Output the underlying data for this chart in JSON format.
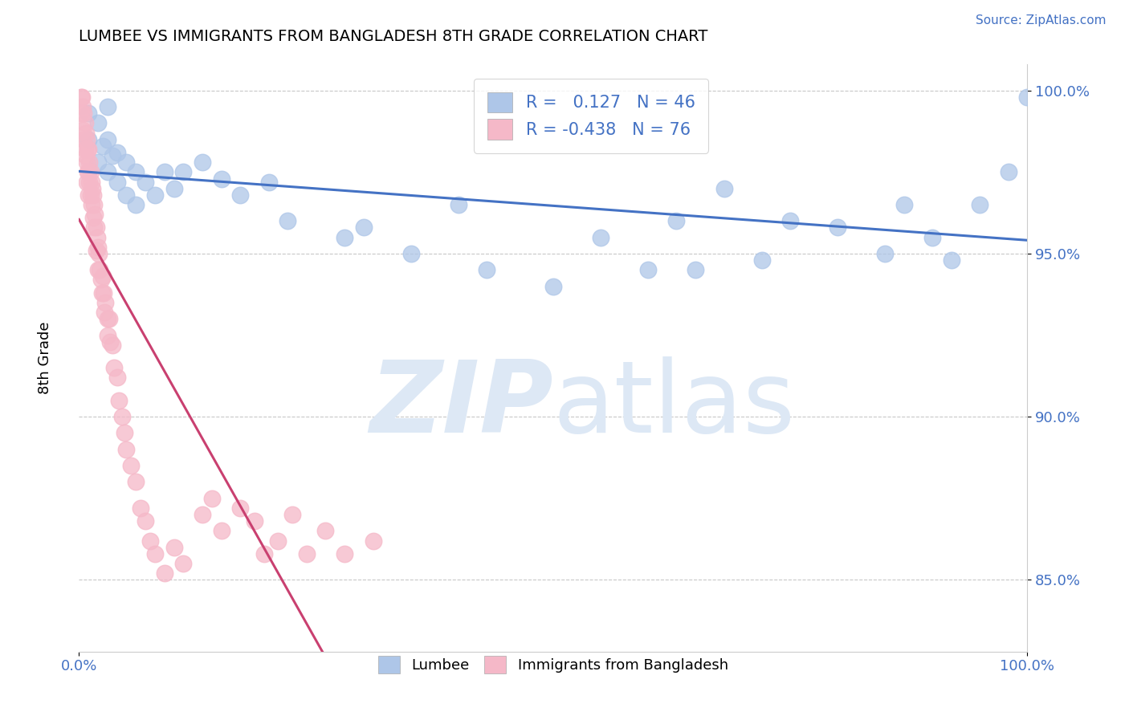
{
  "title": "LUMBEE VS IMMIGRANTS FROM BANGLADESH 8TH GRADE CORRELATION CHART",
  "source": "Source: ZipAtlas.com",
  "ylabel": "8th Grade",
  "xlim": [
    0.0,
    1.0
  ],
  "ylim": [
    0.828,
    1.008
  ],
  "yticks": [
    0.85,
    0.9,
    0.95,
    1.0
  ],
  "ytick_labels": [
    "85.0%",
    "90.0%",
    "95.0%",
    "100.0%"
  ],
  "blue_R": 0.127,
  "blue_N": 46,
  "pink_R": -0.438,
  "pink_N": 76,
  "blue_color": "#aec6e8",
  "pink_color": "#f5b8c8",
  "blue_line_color": "#4472c4",
  "pink_line_color": "#c94070",
  "pink_dash_color": "#d49aaa",
  "legend_text_color": "#4472c4",
  "watermark_color": "#dde8f5",
  "background_color": "#ffffff",
  "grid_color": "#c8c8c8",
  "blue_x": [
    0.01,
    0.01,
    0.02,
    0.02,
    0.025,
    0.03,
    0.03,
    0.03,
    0.035,
    0.04,
    0.04,
    0.05,
    0.05,
    0.06,
    0.06,
    0.07,
    0.08,
    0.09,
    0.1,
    0.11,
    0.13,
    0.15,
    0.17,
    0.2,
    0.22,
    0.28,
    0.3,
    0.35,
    0.4,
    0.43,
    0.5,
    0.55,
    0.6,
    0.63,
    0.65,
    0.68,
    0.72,
    0.75,
    0.8,
    0.85,
    0.87,
    0.9,
    0.92,
    0.95,
    0.98,
    1.0
  ],
  "blue_y": [
    0.993,
    0.985,
    0.978,
    0.99,
    0.983,
    0.985,
    0.995,
    0.975,
    0.98,
    0.972,
    0.981,
    0.978,
    0.968,
    0.975,
    0.965,
    0.972,
    0.968,
    0.975,
    0.97,
    0.975,
    0.978,
    0.973,
    0.968,
    0.972,
    0.96,
    0.955,
    0.958,
    0.95,
    0.965,
    0.945,
    0.94,
    0.955,
    0.945,
    0.96,
    0.945,
    0.97,
    0.948,
    0.96,
    0.958,
    0.95,
    0.965,
    0.955,
    0.948,
    0.965,
    0.975,
    0.998
  ],
  "pink_x": [
    0.002,
    0.002,
    0.003,
    0.004,
    0.004,
    0.005,
    0.005,
    0.006,
    0.006,
    0.007,
    0.007,
    0.008,
    0.008,
    0.008,
    0.009,
    0.009,
    0.01,
    0.01,
    0.01,
    0.011,
    0.011,
    0.012,
    0.012,
    0.013,
    0.013,
    0.014,
    0.015,
    0.015,
    0.016,
    0.016,
    0.017,
    0.018,
    0.018,
    0.019,
    0.02,
    0.02,
    0.021,
    0.022,
    0.023,
    0.024,
    0.025,
    0.026,
    0.027,
    0.028,
    0.03,
    0.03,
    0.032,
    0.033,
    0.035,
    0.037,
    0.04,
    0.042,
    0.045,
    0.048,
    0.05,
    0.055,
    0.06,
    0.065,
    0.07,
    0.075,
    0.08,
    0.09,
    0.1,
    0.11,
    0.13,
    0.14,
    0.15,
    0.17,
    0.185,
    0.195,
    0.21,
    0.225,
    0.24,
    0.26,
    0.28,
    0.31
  ],
  "pink_y": [
    0.998,
    0.993,
    0.998,
    0.995,
    0.988,
    0.993,
    0.985,
    0.99,
    0.982,
    0.987,
    0.98,
    0.985,
    0.978,
    0.972,
    0.982,
    0.975,
    0.982,
    0.975,
    0.968,
    0.978,
    0.972,
    0.975,
    0.968,
    0.972,
    0.965,
    0.97,
    0.968,
    0.961,
    0.965,
    0.958,
    0.962,
    0.958,
    0.951,
    0.955,
    0.952,
    0.945,
    0.95,
    0.945,
    0.942,
    0.938,
    0.943,
    0.938,
    0.932,
    0.935,
    0.93,
    0.925,
    0.93,
    0.923,
    0.922,
    0.915,
    0.912,
    0.905,
    0.9,
    0.895,
    0.89,
    0.885,
    0.88,
    0.872,
    0.868,
    0.862,
    0.858,
    0.852,
    0.86,
    0.855,
    0.87,
    0.875,
    0.865,
    0.872,
    0.868,
    0.858,
    0.862,
    0.87,
    0.858,
    0.865,
    0.858,
    0.862
  ]
}
